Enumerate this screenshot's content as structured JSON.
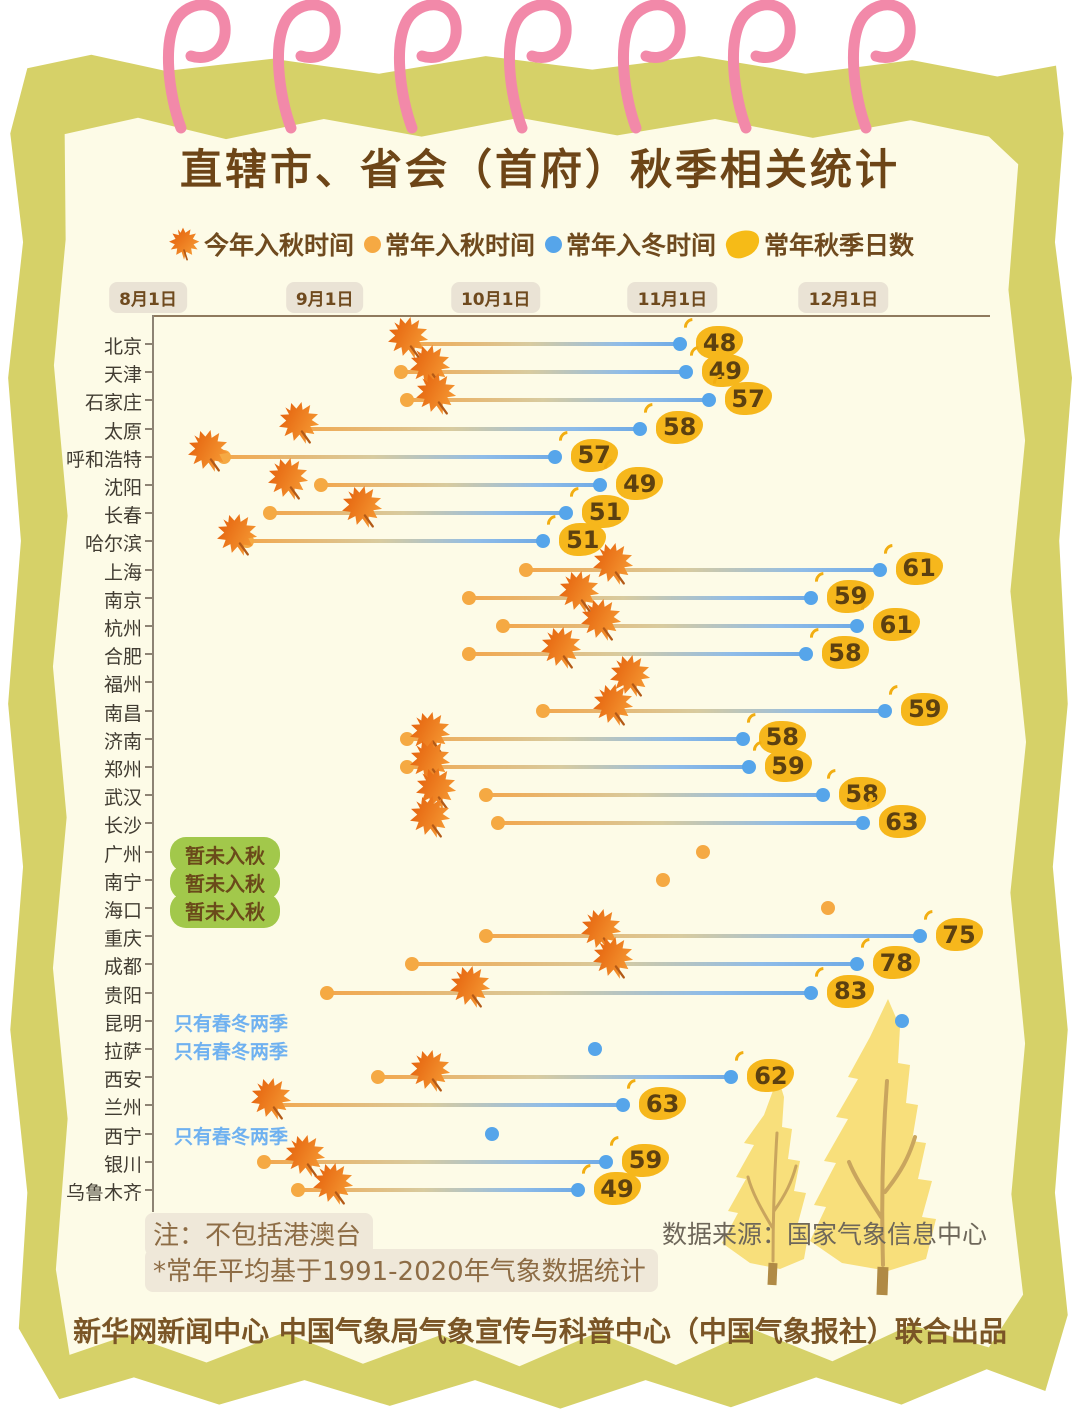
{
  "title": "直辖市、省会（首府）秋季相关统计",
  "legend": [
    {
      "icon": "maple-leaf-icon",
      "label": "今年入秋时间"
    },
    {
      "icon": "orange-dot-icon",
      "label": "常年入秋时间"
    },
    {
      "icon": "blue-dot-icon",
      "label": "常年入冬时间"
    },
    {
      "icon": "yellow-leaf-icon",
      "label": "常年秋季日数"
    }
  ],
  "colors": {
    "paper_border": "#d6d168",
    "paper": "#fdfbe7",
    "spiral_ring": "#f289a9",
    "title_brown": "#6d4517",
    "normal_autumn_orange": "#f5a943",
    "normal_winter_blue": "#56a5ea",
    "days_badge_yellow": "#f6b71c",
    "status_green": "#a2c84b",
    "status_blue_text": "#6fb1f0",
    "tree_yellow": "#f8df7b"
  },
  "chart_data": {
    "type": "dumbbell-timeline",
    "x_axis": {
      "tick_labels": [
        "8月1日",
        "9月1日",
        "10月1日",
        "11月1日",
        "12月1日"
      ],
      "unit": "day offset from 8月1日 (estimated from dot positions)",
      "range_days": [
        0,
        145
      ]
    },
    "rows": [
      {
        "city": "北京",
        "this_year_autumn": 45,
        "normal_autumn": null,
        "normal_winter": 93,
        "autumn_days": 48,
        "status": null
      },
      {
        "city": "天津",
        "this_year_autumn": 49,
        "normal_autumn": 44,
        "normal_winter": 94,
        "autumn_days": 49,
        "status": null
      },
      {
        "city": "石家庄",
        "this_year_autumn": 50,
        "normal_autumn": 45,
        "normal_winter": 98,
        "autumn_days": 57,
        "status": null
      },
      {
        "city": "太原",
        "this_year_autumn": 26,
        "normal_autumn": null,
        "normal_winter": 86,
        "autumn_days": 58,
        "status": null
      },
      {
        "city": "呼和浩特",
        "this_year_autumn": 10,
        "normal_autumn": 13,
        "normal_winter": 71,
        "autumn_days": 57,
        "status": null
      },
      {
        "city": "沈阳",
        "this_year_autumn": 24,
        "normal_autumn": 30,
        "normal_winter": 79,
        "autumn_days": 49,
        "status": null
      },
      {
        "city": "长春",
        "this_year_autumn": 37,
        "normal_autumn": 21,
        "normal_winter": 73,
        "autumn_days": 51,
        "status": null
      },
      {
        "city": "哈尔滨",
        "this_year_autumn": 15,
        "normal_autumn": 17,
        "normal_winter": 69,
        "autumn_days": 51,
        "status": null
      },
      {
        "city": "上海",
        "this_year_autumn": 81,
        "normal_autumn": 66,
        "normal_winter": 128,
        "autumn_days": 61,
        "status": null
      },
      {
        "city": "南京",
        "this_year_autumn": 75,
        "normal_autumn": 56,
        "normal_winter": 116,
        "autumn_days": 59,
        "status": null
      },
      {
        "city": "杭州",
        "this_year_autumn": 79,
        "normal_autumn": 62,
        "normal_winter": 124,
        "autumn_days": 61,
        "status": null
      },
      {
        "city": "合肥",
        "this_year_autumn": 72,
        "normal_autumn": 56,
        "normal_winter": 115,
        "autumn_days": 58,
        "status": null
      },
      {
        "city": "福州",
        "this_year_autumn": 84,
        "normal_autumn": null,
        "normal_winter": null,
        "autumn_days": null,
        "status": null
      },
      {
        "city": "南昌",
        "this_year_autumn": 81,
        "normal_autumn": 69,
        "normal_winter": 129,
        "autumn_days": 59,
        "status": null
      },
      {
        "city": "济南",
        "this_year_autumn": 49,
        "normal_autumn": 45,
        "normal_winter": 104,
        "autumn_days": 58,
        "status": null
      },
      {
        "city": "郑州",
        "this_year_autumn": 49,
        "normal_autumn": 45,
        "normal_winter": 105,
        "autumn_days": 59,
        "status": null
      },
      {
        "city": "武汉",
        "this_year_autumn": 50,
        "normal_autumn": 59,
        "normal_winter": 118,
        "autumn_days": 58,
        "status": null
      },
      {
        "city": "长沙",
        "this_year_autumn": 49,
        "normal_autumn": 61,
        "normal_winter": 125,
        "autumn_days": 63,
        "status": null
      },
      {
        "city": "广州",
        "this_year_autumn": null,
        "normal_autumn": 97,
        "normal_winter": null,
        "autumn_days": null,
        "status": "暂未入秋",
        "status_style": "green-badge"
      },
      {
        "city": "南宁",
        "this_year_autumn": null,
        "normal_autumn": 90,
        "normal_winter": null,
        "autumn_days": null,
        "status": "暂未入秋",
        "status_style": "green-badge"
      },
      {
        "city": "海口",
        "this_year_autumn": null,
        "normal_autumn": 119,
        "normal_winter": null,
        "autumn_days": null,
        "status": "暂未入秋",
        "status_style": "green-badge"
      },
      {
        "city": "重庆",
        "this_year_autumn": 79,
        "normal_autumn": 59,
        "normal_winter": 135,
        "autumn_days": 75,
        "status": null
      },
      {
        "city": "成都",
        "this_year_autumn": 81,
        "normal_autumn": 46,
        "normal_winter": 124,
        "autumn_days": 78,
        "status": null
      },
      {
        "city": "贵阳",
        "this_year_autumn": 56,
        "normal_autumn": 31,
        "normal_winter": 116,
        "autumn_days": 83,
        "status": null
      },
      {
        "city": "昆明",
        "this_year_autumn": null,
        "normal_autumn": null,
        "normal_winter": 132,
        "autumn_days": null,
        "status": "只有春冬两季",
        "status_style": "blue-text"
      },
      {
        "city": "拉萨",
        "this_year_autumn": null,
        "normal_autumn": null,
        "normal_winter": 78,
        "autumn_days": null,
        "status": "只有春冬两季",
        "status_style": "blue-text"
      },
      {
        "city": "西安",
        "this_year_autumn": 49,
        "normal_autumn": 40,
        "normal_winter": 102,
        "autumn_days": 62,
        "status": null
      },
      {
        "city": "兰州",
        "this_year_autumn": 21,
        "normal_autumn": null,
        "normal_winter": 83,
        "autumn_days": 63,
        "status": null
      },
      {
        "city": "西宁",
        "this_year_autumn": null,
        "normal_autumn": null,
        "normal_winter": 60,
        "autumn_days": null,
        "status": "只有春冬两季",
        "status_style": "blue-text"
      },
      {
        "city": "银川",
        "this_year_autumn": 27,
        "normal_autumn": 20,
        "normal_winter": 80,
        "autumn_days": 59,
        "status": null
      },
      {
        "city": "乌鲁木齐",
        "this_year_autumn": 32,
        "normal_autumn": 26,
        "normal_winter": 75,
        "autumn_days": 49,
        "status": null
      }
    ]
  },
  "notes": {
    "line1": "注：不包括港澳台",
    "line2": "*常年平均基于1991-2020年气象数据统计"
  },
  "source": "数据来源：国家气象信息中心",
  "footer": "新华网新闻中心 中国气象局气象宣传与科普中心（中国气象报社）联合出品"
}
